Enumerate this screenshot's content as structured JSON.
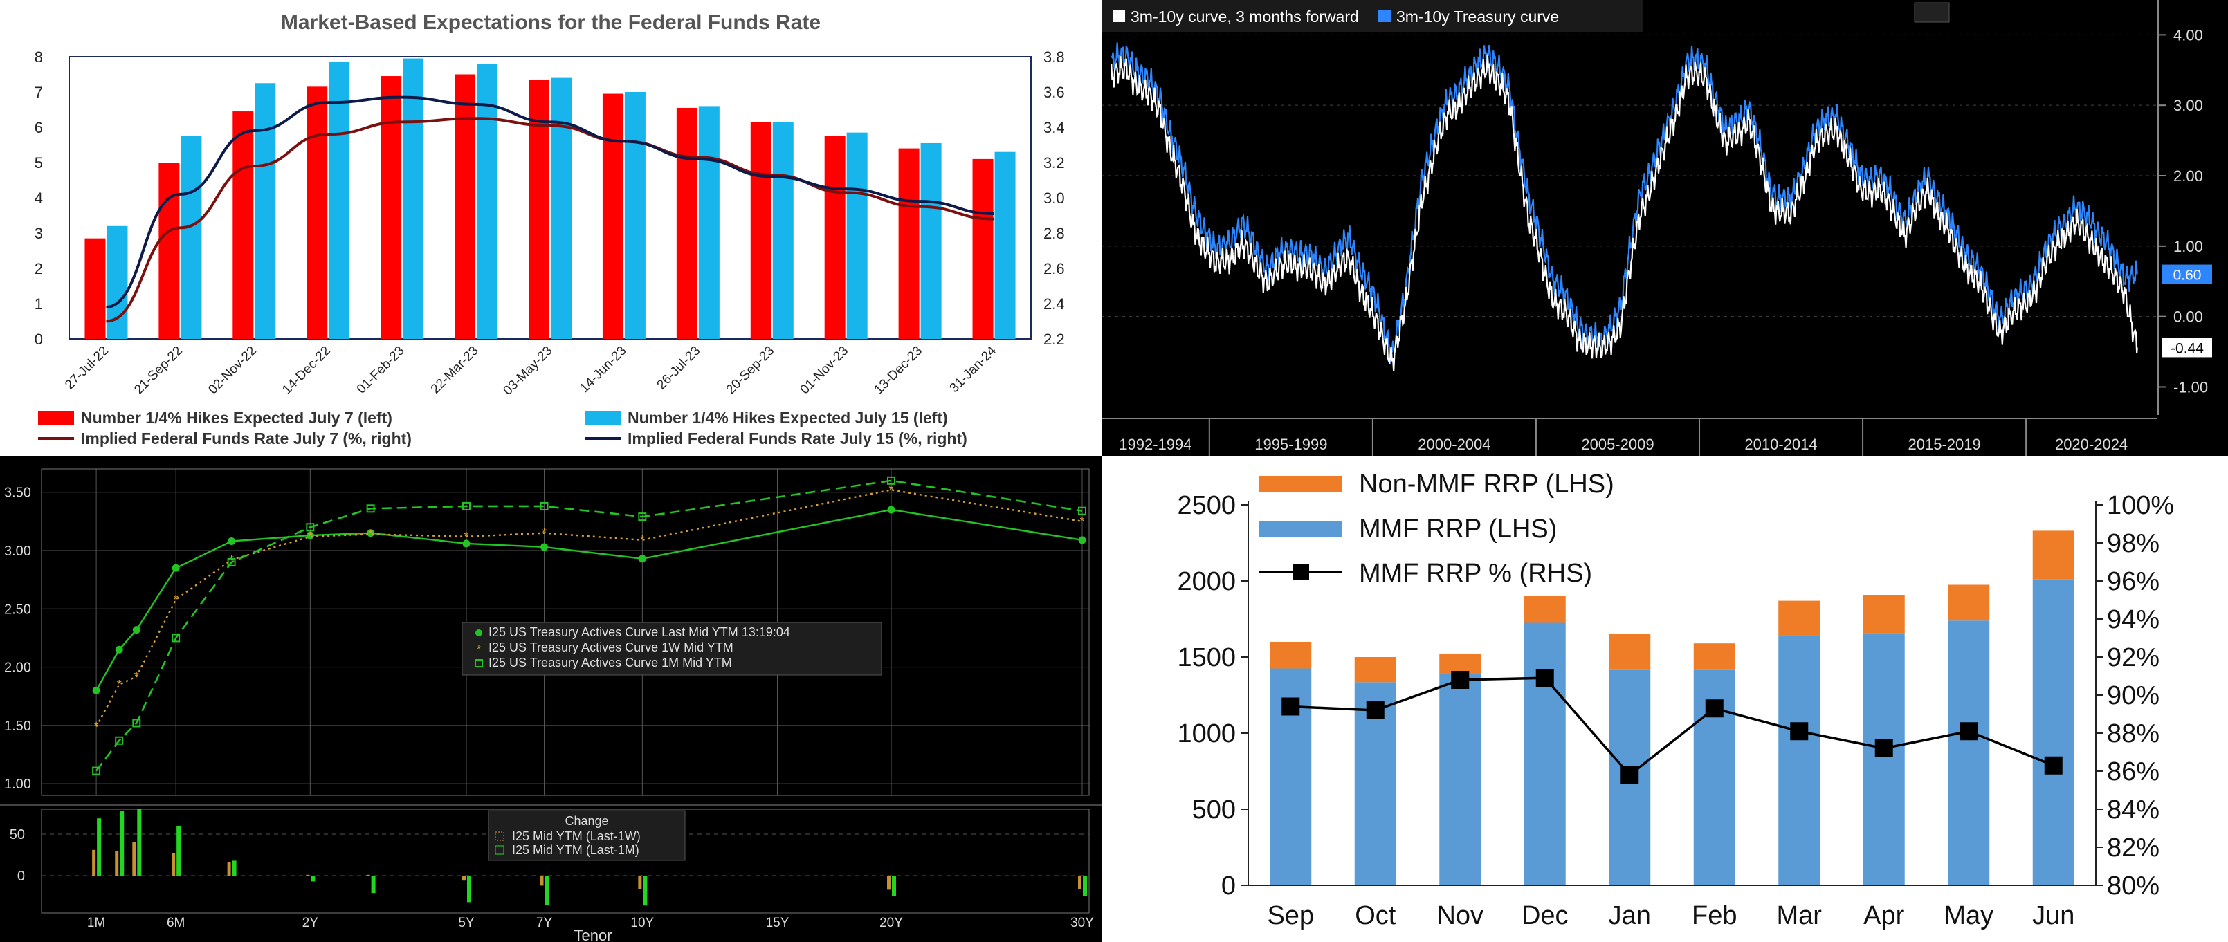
{
  "chart_data": [
    {
      "type": "bar",
      "title": "Market-Based Expectations for the Federal Funds Rate",
      "categories": [
        "27-Jul-22",
        "21-Sep-22",
        "02-Nov-22",
        "14-Dec-22",
        "01-Feb-23",
        "22-Mar-23",
        "03-May-23",
        "14-Jun-23",
        "26-Jul-23",
        "20-Sep-23",
        "01-Nov-23",
        "13-Dec-23",
        "31-Jan-24"
      ],
      "left_axis": {
        "ylim": [
          0,
          8
        ],
        "ticks": [
          "0",
          "1",
          "2",
          "3",
          "4",
          "5",
          "6",
          "7",
          "8"
        ]
      },
      "right_axis": {
        "ylim": [
          2.2,
          3.8
        ],
        "ticks": [
          "2.2",
          "2.4",
          "2.6",
          "2.8",
          "3.0",
          "3.2",
          "3.4",
          "3.6",
          "3.8"
        ]
      },
      "series": [
        {
          "name": "Number 1/4% Hikes Expected July 7 (left)",
          "kind": "bar",
          "axis": "left",
          "color": "#ff0000",
          "values": [
            2.85,
            5.0,
            6.45,
            7.15,
            7.45,
            7.5,
            7.35,
            6.95,
            6.55,
            6.15,
            5.75,
            5.4,
            5.1
          ]
        },
        {
          "name": "Number 1/4% Hikes Expected July 15 (left)",
          "kind": "bar",
          "axis": "left",
          "color": "#17b5ec",
          "values": [
            3.2,
            5.75,
            7.25,
            7.85,
            7.95,
            7.8,
            7.4,
            7.0,
            6.6,
            6.15,
            5.85,
            5.55,
            5.3
          ]
        },
        {
          "name": "Implied Federal Funds Rate July 7 (%, right)",
          "kind": "line",
          "axis": "right",
          "color": "#7a1010",
          "values": [
            2.3,
            2.83,
            3.18,
            3.36,
            3.43,
            3.45,
            3.41,
            3.32,
            3.23,
            3.13,
            3.03,
            2.95,
            2.88
          ]
        },
        {
          "name": "Implied Federal Funds Rate July 15 (%, right)",
          "kind": "line",
          "axis": "right",
          "color": "#0d1a4a",
          "values": [
            2.38,
            3.02,
            3.38,
            3.54,
            3.57,
            3.53,
            3.43,
            3.32,
            3.22,
            3.12,
            3.05,
            2.98,
            2.91
          ]
        }
      ]
    },
    {
      "type": "line",
      "legend": [
        "3m-10y curve, 3 months forward",
        "3m-10y Treasury curve"
      ],
      "x_labels": [
        "1992-1994",
        "1995-1999",
        "2000-2004",
        "2005-2009",
        "2010-2014",
        "2015-2019",
        "2020-2024"
      ],
      "ylim": [
        -1.3,
        4.2
      ],
      "y_ticks": [
        "4.00",
        "3.00",
        "2.00",
        "1.00",
        "0.00",
        "-1.00"
      ],
      "last_values": [
        "0.60",
        "-0.44"
      ],
      "series": [
        {
          "name": "3m-10y Treasury curve",
          "color": "#2e86ff",
          "anchors": [
            [
              1992.0,
              3.6
            ],
            [
              1992.5,
              3.7
            ],
            [
              1993.5,
              3.1
            ],
            [
              1994.5,
              1.6
            ],
            [
              1995.2,
              0.9
            ],
            [
              1996.0,
              1.3
            ],
            [
              1996.8,
              0.7
            ],
            [
              1997.5,
              1.0
            ],
            [
              1998.5,
              0.7
            ],
            [
              1999.3,
              1.1
            ],
            [
              2000.0,
              0.3
            ],
            [
              2000.6,
              -0.5
            ],
            [
              2001.0,
              0.3
            ],
            [
              2001.5,
              2.0
            ],
            [
              2002.3,
              3.1
            ],
            [
              2003.0,
              3.4
            ],
            [
              2003.5,
              3.8
            ],
            [
              2004.2,
              3.2
            ],
            [
              2004.8,
              1.6
            ],
            [
              2005.5,
              0.6
            ],
            [
              2006.3,
              -0.1
            ],
            [
              2007.0,
              -0.4
            ],
            [
              2007.6,
              0.2
            ],
            [
              2008.2,
              1.8
            ],
            [
              2008.9,
              2.5
            ],
            [
              2009.6,
              3.6
            ],
            [
              2010.2,
              3.6
            ],
            [
              2010.8,
              2.6
            ],
            [
              2011.5,
              3.0
            ],
            [
              2012.2,
              1.8
            ],
            [
              2012.8,
              1.6
            ],
            [
              2013.5,
              2.6
            ],
            [
              2014.2,
              2.9
            ],
            [
              2014.9,
              2.0
            ],
            [
              2015.5,
              2.0
            ],
            [
              2016.3,
              1.4
            ],
            [
              2017.0,
              2.0
            ],
            [
              2017.8,
              1.2
            ],
            [
              2018.5,
              0.7
            ],
            [
              2019.2,
              0.0
            ],
            [
              2019.8,
              0.3
            ],
            [
              2020.3,
              0.6
            ],
            [
              2021.0,
              1.3
            ],
            [
              2021.5,
              1.5
            ],
            [
              2022.0,
              1.4
            ],
            [
              2022.6,
              0.9
            ],
            [
              2023.0,
              0.6
            ],
            [
              2023.4,
              0.6
            ]
          ]
        },
        {
          "name": "3m-10y curve, 3 months forward",
          "color": "#ffffff",
          "anchors": [
            [
              1992.0,
              3.4
            ],
            [
              1992.5,
              3.5
            ],
            [
              1993.5,
              2.9
            ],
            [
              1994.5,
              1.3
            ],
            [
              1995.2,
              0.7
            ],
            [
              1996.0,
              1.0
            ],
            [
              1996.8,
              0.5
            ],
            [
              1997.5,
              0.8
            ],
            [
              1998.5,
              0.5
            ],
            [
              1999.3,
              0.8
            ],
            [
              2000.0,
              0.0
            ],
            [
              2000.6,
              -0.6
            ],
            [
              2001.0,
              0.1
            ],
            [
              2001.5,
              1.7
            ],
            [
              2002.3,
              2.9
            ],
            [
              2003.0,
              3.2
            ],
            [
              2003.5,
              3.6
            ],
            [
              2004.2,
              3.0
            ],
            [
              2004.8,
              1.3
            ],
            [
              2005.5,
              0.3
            ],
            [
              2006.3,
              -0.3
            ],
            [
              2007.0,
              -0.5
            ],
            [
              2007.6,
              -0.1
            ],
            [
              2008.2,
              1.5
            ],
            [
              2008.9,
              2.3
            ],
            [
              2009.6,
              3.4
            ],
            [
              2010.2,
              3.4
            ],
            [
              2010.8,
              2.4
            ],
            [
              2011.5,
              2.8
            ],
            [
              2012.2,
              1.6
            ],
            [
              2012.8,
              1.4
            ],
            [
              2013.5,
              2.4
            ],
            [
              2014.2,
              2.7
            ],
            [
              2014.9,
              1.8
            ],
            [
              2015.5,
              1.8
            ],
            [
              2016.3,
              1.2
            ],
            [
              2017.0,
              1.8
            ],
            [
              2017.8,
              1.0
            ],
            [
              2018.5,
              0.5
            ],
            [
              2019.2,
              -0.2
            ],
            [
              2019.8,
              0.1
            ],
            [
              2020.3,
              0.4
            ],
            [
              2021.0,
              1.1
            ],
            [
              2021.5,
              1.3
            ],
            [
              2022.0,
              1.1
            ],
            [
              2022.6,
              0.6
            ],
            [
              2023.0,
              0.4
            ],
            [
              2023.4,
              -0.44
            ]
          ]
        }
      ]
    },
    {
      "type": "line",
      "xlabel": "Tenor",
      "tenors": [
        "1M",
        "2M",
        "3M",
        "6M",
        "1Y",
        "2Y",
        "3Y",
        "5Y",
        "7Y",
        "10Y",
        "20Y",
        "30Y"
      ],
      "x_years": [
        0.083,
        0.167,
        0.25,
        0.5,
        1,
        2,
        3,
        5,
        7,
        10,
        20,
        30
      ],
      "x_tick_labels": [
        "1M",
        "6M",
        "2Y",
        "5Y",
        "7Y",
        "10Y",
        "15Y",
        "20Y",
        "30Y"
      ],
      "ylim": [
        0.9,
        3.7
      ],
      "y_ticks": [
        "3.50",
        "3.00",
        "2.50",
        "2.00",
        "1.50",
        "1.00"
      ],
      "legend": [
        "I25 US Treasury Actives Curve Last Mid YTM 13:19:04",
        "I25 US Treasury Actives Curve 1W Mid YTM",
        "I25 US Treasury Actives Curve 1M Mid YTM"
      ],
      "series": [
        {
          "name": "I25 US Treasury Actives Curve Last Mid YTM 13:19:04",
          "color": "#22c422",
          "values": [
            1.8,
            2.15,
            2.32,
            2.85,
            3.08,
            3.13,
            3.15,
            3.06,
            3.03,
            2.93,
            3.35,
            3.09
          ]
        },
        {
          "name": "I25 US Treasury Actives Curve 1W Mid YTM",
          "color": "#d8a030",
          "values": [
            1.49,
            1.85,
            1.92,
            2.58,
            2.92,
            3.12,
            3.14,
            3.12,
            3.15,
            3.09,
            3.52,
            3.25
          ]
        },
        {
          "name": "I25 US Treasury Actives Curve 1M Mid YTM",
          "color": "#22c422",
          "values": [
            1.11,
            1.37,
            1.52,
            2.25,
            2.9,
            3.2,
            3.36,
            3.38,
            3.38,
            3.29,
            3.6,
            3.34
          ]
        }
      ],
      "change_panel": {
        "title": "Change",
        "legend": [
          "I25 Mid YTM (Last-1W)",
          "I25 Mid YTM (Last-1M)"
        ],
        "ylim": [
          -45,
          80
        ],
        "y_ticks": [
          "50",
          "0"
        ],
        "last_1w": [
          31,
          30,
          40,
          27,
          16,
          1,
          1,
          -6,
          -12,
          -16,
          -17,
          -16
        ],
        "last_1m": [
          69,
          78,
          80,
          60,
          18,
          -7,
          -21,
          -32,
          -35,
          -36,
          -25,
          -25
        ]
      }
    },
    {
      "type": "bar",
      "categories": [
        "Sep",
        "Oct",
        "Nov",
        "Dec",
        "Jan",
        "Feb",
        "Mar",
        "Apr",
        "May",
        "Jun"
      ],
      "left_axis": {
        "ylim": [
          0,
          2500
        ],
        "ticks": [
          "0",
          "500",
          "1000",
          "1500",
          "2000",
          "2500"
        ]
      },
      "right_axis": {
        "ylim": [
          80,
          100
        ],
        "ticks": [
          "80%",
          "82%",
          "84%",
          "86%",
          "88%",
          "90%",
          "92%",
          "94%",
          "96%",
          "98%",
          "100%"
        ]
      },
      "series": [
        {
          "name": "Non-MMF RRP (LHS)",
          "kind": "stacked-bar",
          "color": "#ef7d27",
          "values": [
            175,
            165,
            125,
            175,
            235,
            175,
            225,
            250,
            235,
            320
          ]
        },
        {
          "name": "MMF RRP (LHS)",
          "kind": "bar",
          "color": "#5b9bd5",
          "values": [
            1425,
            1335,
            1395,
            1725,
            1415,
            1415,
            1645,
            1655,
            1740,
            2010
          ]
        },
        {
          "name": "MMF RRP % (RHS)",
          "kind": "line",
          "color": "#000000",
          "values": [
            89.4,
            89.2,
            90.8,
            90.9,
            85.8,
            89.3,
            88.1,
            87.2,
            88.1,
            86.3
          ]
        }
      ]
    }
  ]
}
